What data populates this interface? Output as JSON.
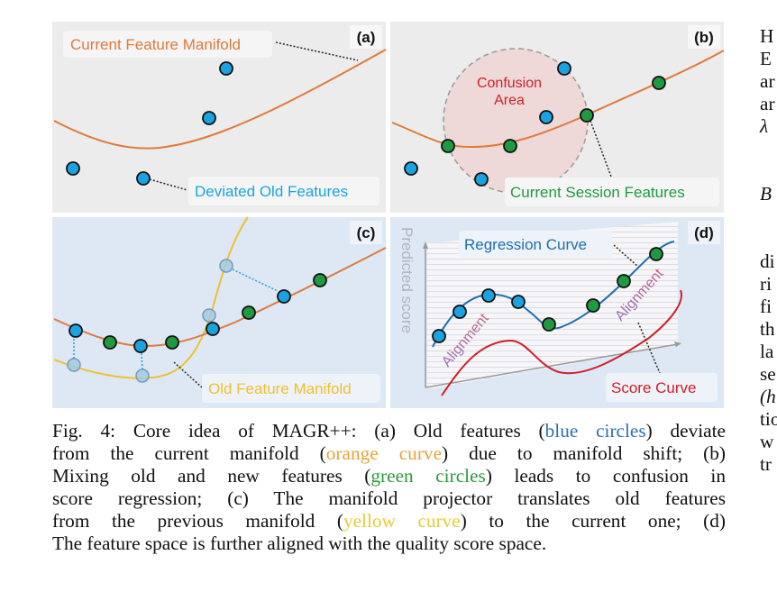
{
  "figure": {
    "panels": {
      "a": {
        "tag": "(a)",
        "labels": {
          "manifold": "Current Feature Manifold",
          "deviated": "Deviated Old Features"
        }
      },
      "b": {
        "tag": "(b)",
        "labels": {
          "confusion_line1": "Confusion",
          "confusion_line2": "Area",
          "session": "Current Session Features"
        }
      },
      "c": {
        "tag": "(c)",
        "labels": {
          "old_manifold": "Old Feature Manifold"
        }
      },
      "d": {
        "tag": "(d)",
        "labels": {
          "y_axis": "Predicted score",
          "regression": "Regression Curve",
          "alignment_left": "Alignment",
          "alignment_right": "Alignment",
          "score": "Score Curve"
        }
      }
    },
    "colors": {
      "panel_gray": "#ececec",
      "panel_blue": "#dde8f4",
      "orange_curve": "#e07a3a",
      "yellow_curve": "#f0c030",
      "blue_point": "#1aa3e0",
      "green_point": "#1f9a3f",
      "regression_curve": "#1d6fae",
      "score_curve": "#d01f2a",
      "confusion_fill": "#f0d0d0",
      "label_orange": "#e07a3a",
      "label_blue": "#1aa3e0",
      "label_green": "#1f9a3f",
      "label_red": "#d01f2a",
      "label_yellow": "#f0c030",
      "label_navy": "#1d6fae"
    }
  },
  "caption": {
    "lines": [
      [
        {
          "t": "Fig. 4: Core idea of MAGR++: (a) Old features (",
          "c": ""
        },
        {
          "t": "blue circles",
          "c": "blue"
        },
        {
          "t": ") deviate",
          "c": ""
        }
      ],
      [
        {
          "t": "from the current manifold (",
          "c": ""
        },
        {
          "t": "orange curve",
          "c": "orange"
        },
        {
          "t": ") due to manifold shift; (b)",
          "c": ""
        }
      ],
      [
        {
          "t": "Mixing old and new features (",
          "c": ""
        },
        {
          "t": "green circles",
          "c": "green"
        },
        {
          "t": ") leads to confusion in",
          "c": ""
        }
      ],
      [
        {
          "t": "score regression; (c) The manifold projector translates old features",
          "c": ""
        }
      ],
      [
        {
          "t": "from the previous manifold (",
          "c": ""
        },
        {
          "t": "yellow curve",
          "c": "yellow"
        },
        {
          "t": ") to the current one; (d)",
          "c": ""
        }
      ],
      [
        {
          "t": "The feature space is further aligned with the quality score space.",
          "c": ""
        }
      ]
    ]
  },
  "right_column": {
    "fragments": [
      "H",
      "E",
      "ar",
      "ar",
      "λ",
      "",
      "",
      "B",
      "",
      "",
      "di",
      "ri",
      "fi",
      "th",
      "la",
      "se",
      "(h",
      "tio",
      "w",
      "tr"
    ]
  }
}
